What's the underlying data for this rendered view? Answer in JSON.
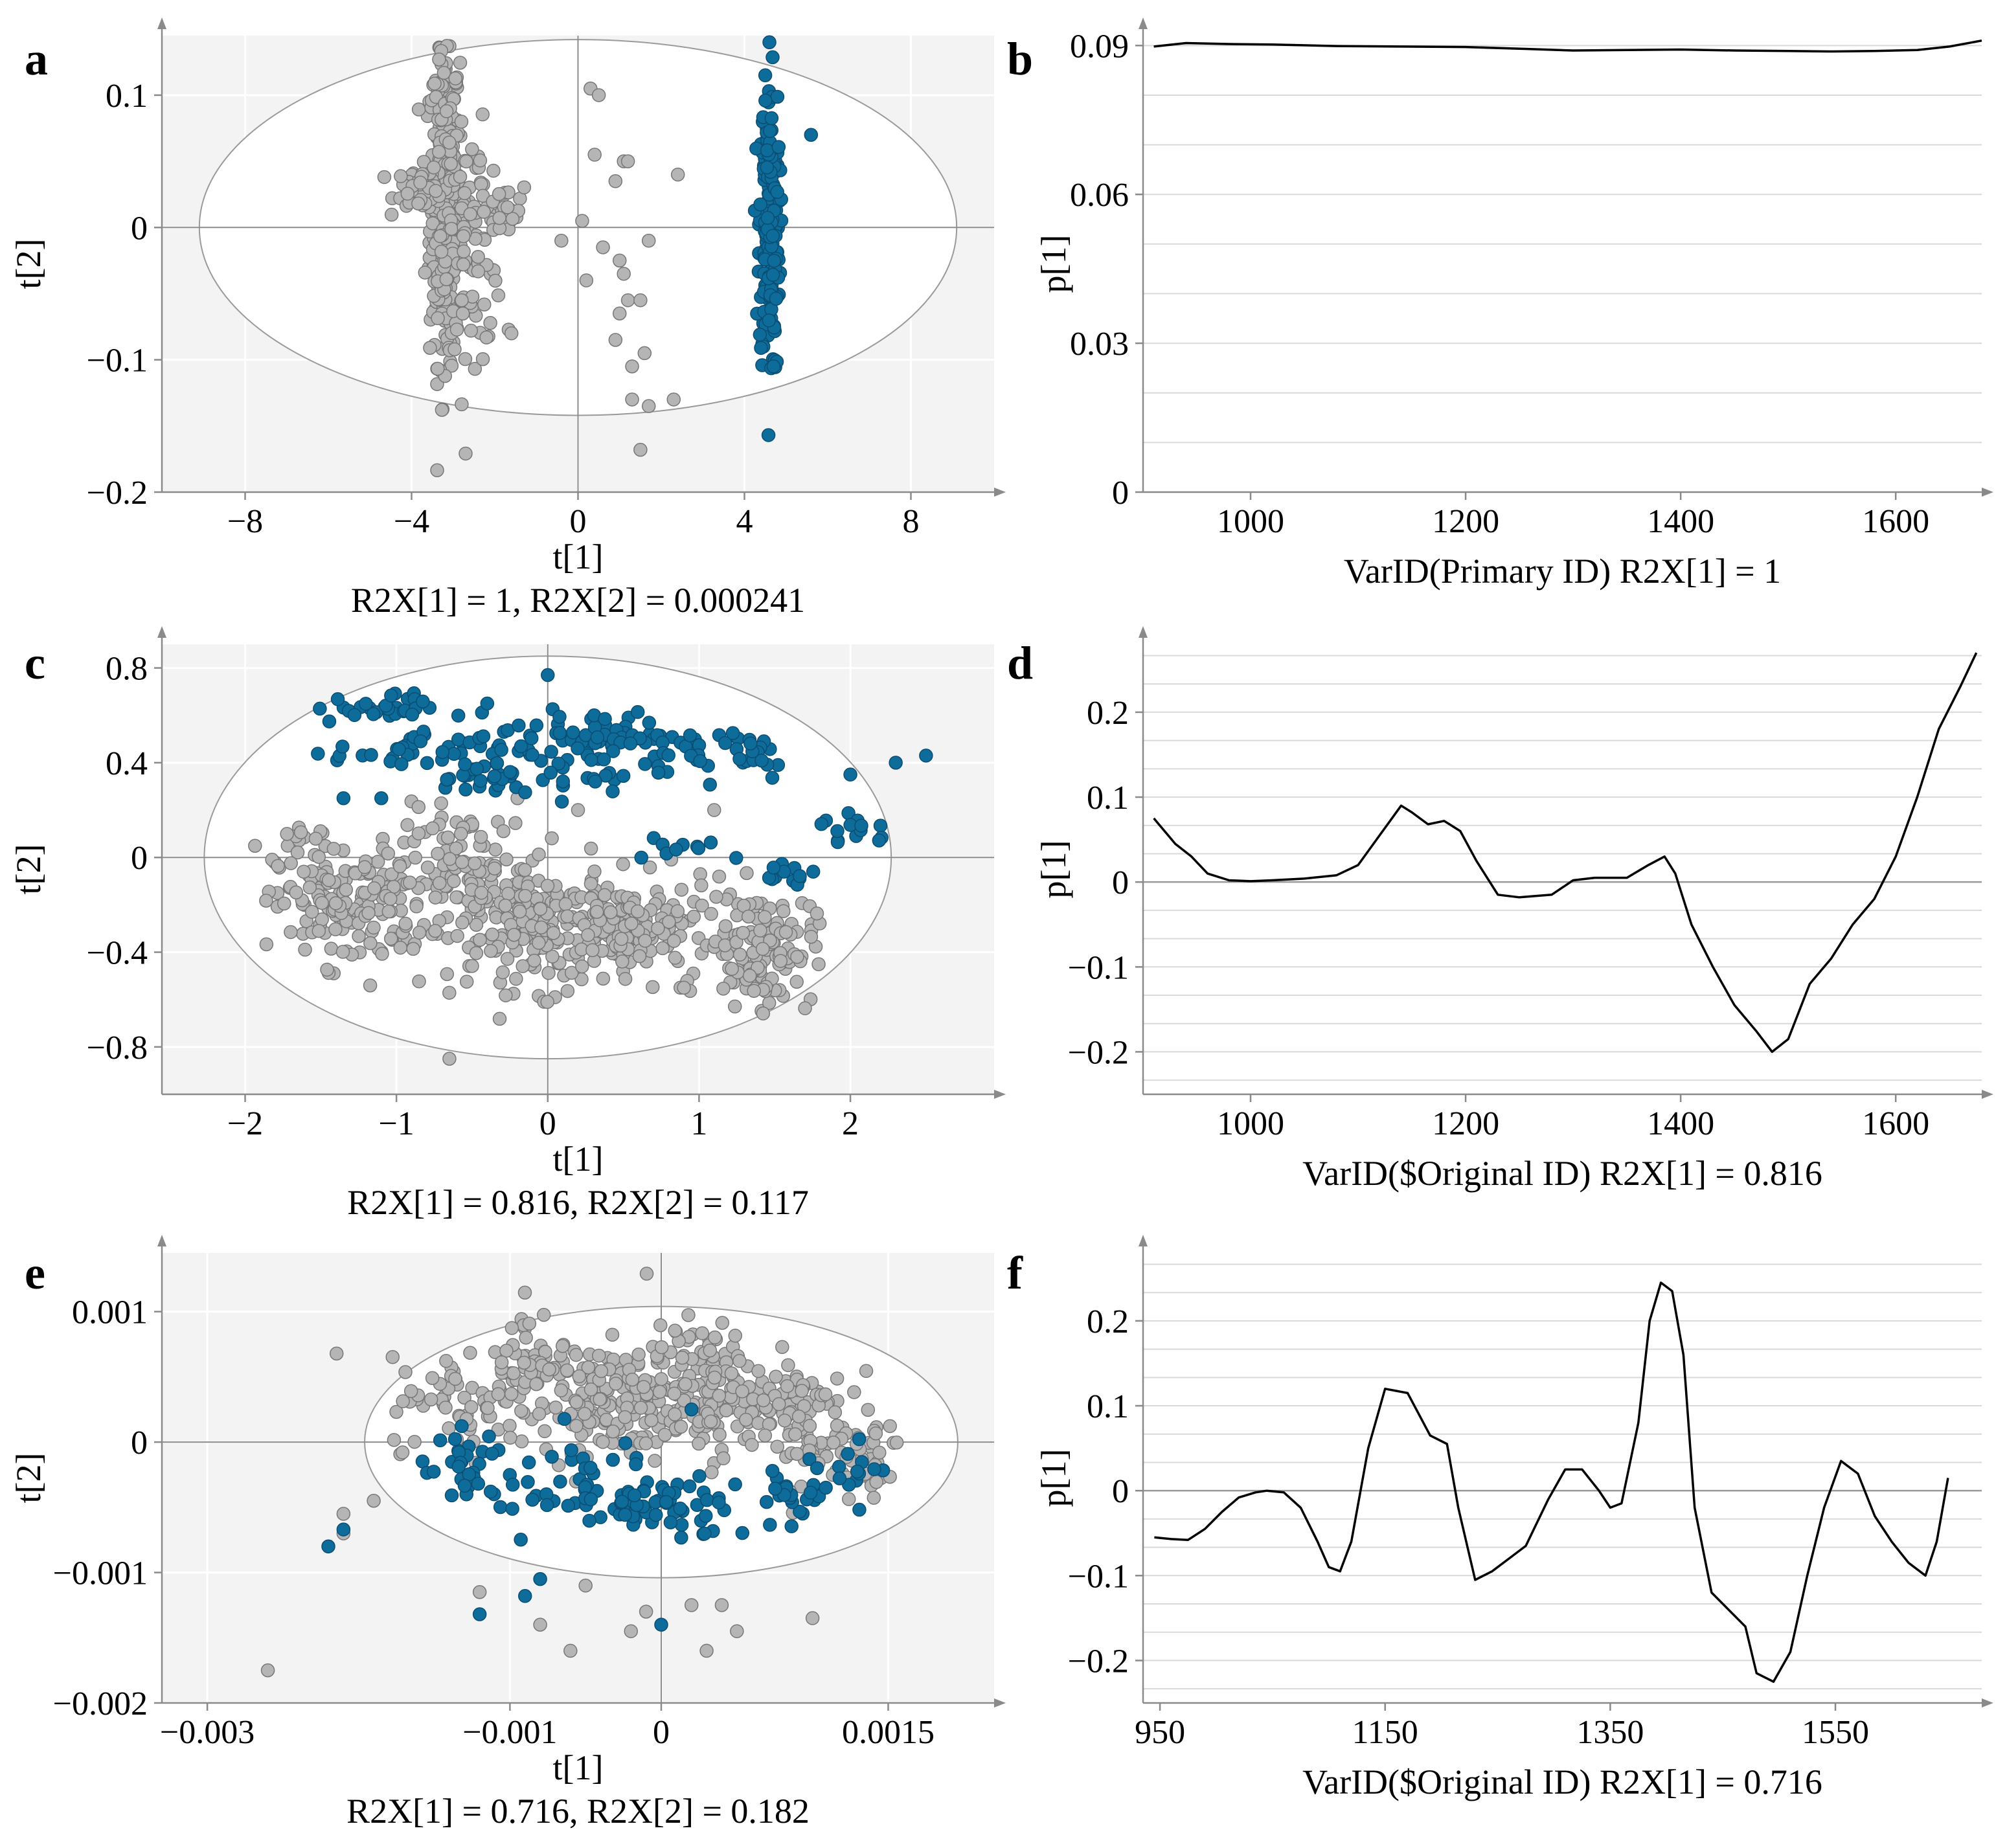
{
  "colors": {
    "gray_point": "#b5b5b5",
    "gray_point_edge": "#777777",
    "blue_point": "#0e6c9b",
    "blue_point_edge": "#0a4d73",
    "plot_bg": "#f3f3f3",
    "grid": "#d9d9d9",
    "line": "#000000"
  },
  "chart_data": [
    {
      "id": "a",
      "letter": "a",
      "type": "scatter",
      "xlabel": "t[1]",
      "ylabel": "t[2]",
      "subtitle": "R2X[1] = 1, R2X[2] = 0.000241",
      "xlim": [
        -10,
        10
      ],
      "ylim": [
        -0.2,
        0.145
      ],
      "xticks": [
        -8,
        -4,
        0,
        4,
        8
      ],
      "xtick_labels": [
        "−8",
        "−4",
        "0",
        "4",
        "8"
      ],
      "yticks": [
        -0.2,
        -0.1,
        0,
        0.1
      ],
      "ytick_labels": [
        "−0.2",
        "−0.1",
        "0",
        "0.1"
      ],
      "ellipse": {
        "rx": 9.1,
        "ry": 0.142
      },
      "series": [
        {
          "name": "gray",
          "clusters": [
            {
              "cx": -3.2,
              "cy": 0.02,
              "sx": 0.18,
              "sy": 0.06,
              "n": 420
            },
            {
              "cx": -3.8,
              "cy": 0.03,
              "sx": 0.3,
              "sy": 0.008,
              "n": 60
            },
            {
              "cx": -2.5,
              "cy": -0.01,
              "sx": 0.35,
              "sy": 0.04,
              "n": 90
            },
            {
              "cx": -1.8,
              "cy": 0.01,
              "sx": 0.25,
              "sy": 0.01,
              "n": 20
            }
          ],
          "points": [
            [
              0.3,
              0.105
            ],
            [
              0.5,
              0.1
            ],
            [
              0.4,
              0.055
            ],
            [
              1.1,
              0.05
            ],
            [
              1.2,
              0.05
            ],
            [
              2.4,
              0.04
            ],
            [
              0.9,
              0.035
            ],
            [
              -0.4,
              -0.01
            ],
            [
              0.1,
              0.005
            ],
            [
              0.6,
              -0.015
            ],
            [
              1.7,
              -0.01
            ],
            [
              1.0,
              -0.025
            ],
            [
              1.1,
              -0.035
            ],
            [
              0.2,
              -0.04
            ],
            [
              1.2,
              -0.055
            ],
            [
              1.5,
              -0.055
            ],
            [
              1.0,
              -0.065
            ],
            [
              0.9,
              -0.085
            ],
            [
              1.6,
              -0.095
            ],
            [
              1.3,
              -0.105
            ],
            [
              2.3,
              -0.13
            ],
            [
              1.3,
              -0.13
            ],
            [
              1.7,
              -0.135
            ],
            [
              1.5,
              -0.168
            ],
            [
              -1.6,
              -0.08
            ]
          ]
        },
        {
          "name": "blue",
          "clusters": [
            {
              "cx": 4.6,
              "cy": 0.0,
              "sx": 0.12,
              "sy": 0.055,
              "n": 200
            }
          ],
          "points": [
            [
              4.6,
              0.14
            ],
            [
              4.5,
              0.115
            ],
            [
              5.6,
              0.07
            ],
            [
              4.7,
              -0.105
            ]
          ]
        }
      ]
    },
    {
      "id": "b",
      "letter": "b",
      "type": "line",
      "xlabel": "VarID(Primary ID)  R2X[1] = 1",
      "ylabel": "p[1]",
      "xlim": [
        900,
        1680
      ],
      "ylim": [
        0,
        0.092
      ],
      "xticks": [
        1000,
        1200,
        1400,
        1600
      ],
      "xtick_labels": [
        "1000",
        "1200",
        "1400",
        "1600"
      ],
      "yticks": [
        0,
        0.03,
        0.06,
        0.09
      ],
      "ytick_labels": [
        "0",
        "0.03",
        "0.06",
        "0.09"
      ],
      "x": [
        910,
        940,
        980,
        1020,
        1080,
        1140,
        1200,
        1260,
        1300,
        1350,
        1400,
        1450,
        1500,
        1540,
        1580,
        1620,
        1650,
        1680
      ],
      "y": [
        0.0898,
        0.0905,
        0.0903,
        0.0902,
        0.0899,
        0.0898,
        0.0897,
        0.0893,
        0.089,
        0.0891,
        0.0892,
        0.089,
        0.0889,
        0.0888,
        0.0889,
        0.0891,
        0.0898,
        0.091
      ]
    },
    {
      "id": "c",
      "letter": "c",
      "type": "scatter",
      "xlabel": "t[1]",
      "ylabel": "t[2]",
      "subtitle": "R2X[1] = 0.816, R2X[2] = 0.117",
      "xlim": [
        -2.55,
        2.95
      ],
      "ylim": [
        -1.0,
        0.9
      ],
      "xticks": [
        -2,
        -1,
        0,
        1,
        2
      ],
      "xtick_labels": [
        "−2",
        "−1",
        "0",
        "1",
        "2"
      ],
      "yticks": [
        -0.8,
        -0.4,
        0,
        0.4,
        0.8
      ],
      "ytick_labels": [
        "−0.8",
        "−0.4",
        "0",
        "0.4",
        "0.8"
      ],
      "ellipse": {
        "rx": 2.27,
        "ry": 0.85
      },
      "series": [
        {
          "name": "gray",
          "clusters": [
            {
              "cx": -1.3,
              "cy": -0.2,
              "sx": 0.25,
              "sy": 0.13,
              "n": 160
            },
            {
              "cx": -0.55,
              "cy": -0.1,
              "sx": 0.22,
              "sy": 0.15,
              "n": 120
            },
            {
              "cx": 0.0,
              "cy": -0.3,
              "sx": 0.25,
              "sy": 0.13,
              "n": 170
            },
            {
              "cx": 0.6,
              "cy": -0.3,
              "sx": 0.25,
              "sy": 0.1,
              "n": 120
            },
            {
              "cx": 1.4,
              "cy": -0.38,
              "sx": 0.18,
              "sy": 0.12,
              "n": 130
            },
            {
              "cx": -1.7,
              "cy": 0.05,
              "sx": 0.1,
              "sy": 0.05,
              "n": 14
            }
          ],
          "points": [
            [
              -0.65,
              -0.85
            ],
            [
              0.2,
              0.2
            ],
            [
              -0.2,
              0.25
            ],
            [
              1.1,
              0.2
            ],
            [
              0.9,
              -0.55
            ]
          ]
        },
        {
          "name": "blue",
          "clusters": [
            {
              "cx": -1.15,
              "cy": 0.63,
              "sx": 0.2,
              "sy": 0.03,
              "n": 30
            },
            {
              "cx": -0.85,
              "cy": 0.45,
              "sx": 0.28,
              "sy": 0.04,
              "n": 35
            },
            {
              "cx": -0.45,
              "cy": 0.33,
              "sx": 0.2,
              "sy": 0.04,
              "n": 25
            },
            {
              "cx": 0.3,
              "cy": 0.52,
              "sx": 0.3,
              "sy": 0.05,
              "n": 60
            },
            {
              "cx": 0.2,
              "cy": 0.38,
              "sx": 0.3,
              "sy": 0.06,
              "n": 30
            },
            {
              "cx": 1.2,
              "cy": 0.45,
              "sx": 0.25,
              "sy": 0.06,
              "n": 35
            },
            {
              "cx": 0.9,
              "cy": 0.05,
              "sx": 0.25,
              "sy": 0.03,
              "n": 10
            },
            {
              "cx": 1.55,
              "cy": -0.07,
              "sx": 0.12,
              "sy": 0.04,
              "n": 12
            },
            {
              "cx": 2.05,
              "cy": 0.12,
              "sx": 0.12,
              "sy": 0.04,
              "n": 15
            }
          ],
          "points": [
            [
              0.0,
              0.77
            ],
            [
              2.5,
              0.43
            ],
            [
              2.3,
              0.4
            ],
            [
              2.0,
              0.35
            ],
            [
              -0.4,
              0.65
            ],
            [
              -1.35,
              0.25
            ],
            [
              -1.1,
              0.25
            ]
          ]
        }
      ]
    },
    {
      "id": "d",
      "letter": "d",
      "type": "line",
      "xlabel": "VarID($Original ID)  R2X[1] = 0.816",
      "ylabel": "p[1]",
      "xlim": [
        900,
        1680
      ],
      "ylim": [
        -0.25,
        0.28
      ],
      "xticks": [
        1000,
        1200,
        1400,
        1600
      ],
      "xtick_labels": [
        "1000",
        "1200",
        "1400",
        "1600"
      ],
      "yticks": [
        -0.2,
        -0.1,
        0,
        0.1,
        0.2
      ],
      "ytick_labels": [
        "−0.2",
        "−0.1",
        "0",
        "0.1",
        "0.2"
      ],
      "x": [
        910,
        920,
        930,
        945,
        960,
        980,
        1000,
        1020,
        1050,
        1080,
        1100,
        1120,
        1140,
        1150,
        1165,
        1180,
        1195,
        1210,
        1230,
        1250,
        1280,
        1300,
        1320,
        1350,
        1370,
        1385,
        1395,
        1410,
        1430,
        1450,
        1470,
        1485,
        1500,
        1520,
        1540,
        1560,
        1580,
        1600,
        1620,
        1640,
        1660,
        1675
      ],
      "y": [
        0.075,
        0.06,
        0.045,
        0.03,
        0.01,
        0.002,
        0.001,
        0.002,
        0.004,
        0.008,
        0.02,
        0.055,
        0.09,
        0.082,
        0.068,
        0.072,
        0.06,
        0.025,
        -0.015,
        -0.018,
        -0.015,
        0.002,
        0.005,
        0.005,
        0.02,
        0.03,
        0.01,
        -0.05,
        -0.1,
        -0.145,
        -0.175,
        -0.2,
        -0.185,
        -0.12,
        -0.09,
        -0.05,
        -0.02,
        0.03,
        0.1,
        0.18,
        0.23,
        0.27
      ]
    },
    {
      "id": "e",
      "letter": "e",
      "type": "scatter",
      "xlabel": "t[1]",
      "ylabel": "t[2]",
      "subtitle": "R2X[1] = 0.716, R2X[2] = 0.182",
      "xlim": [
        -0.0033,
        0.0022
      ],
      "ylim": [
        -0.002,
        0.00145
      ],
      "xticks": [
        -0.003,
        -0.001,
        0,
        0.0015
      ],
      "xtick_labels": [
        "−0.003",
        "−0.001",
        "0",
        "0.0015"
      ],
      "yticks": [
        -0.002,
        -0.001,
        0,
        0.001
      ],
      "ytick_labels": [
        "−0.002",
        "−0.001",
        "0",
        "0.001"
      ],
      "ellipse": {
        "rx": 0.00196,
        "ry": 0.00104
      },
      "series": [
        {
          "name": "gray",
          "clusters": [
            {
              "cx": -0.0013,
              "cy": 0.0003,
              "sx": 0.00025,
              "sy": 0.00018,
              "n": 60
            },
            {
              "cx": -0.0008,
              "cy": 0.0006,
              "sx": 0.0002,
              "sy": 0.00022,
              "n": 70
            },
            {
              "cx": -0.0003,
              "cy": 0.0003,
              "sx": 0.00025,
              "sy": 0.0002,
              "n": 140
            },
            {
              "cx": 0.0003,
              "cy": 0.0004,
              "sx": 0.0002,
              "sy": 0.00025,
              "n": 140
            },
            {
              "cx": 0.0009,
              "cy": 0.0002,
              "sx": 0.00015,
              "sy": 0.00025,
              "n": 90
            },
            {
              "cx": 0.0013,
              "cy": -0.0001,
              "sx": 0.00015,
              "sy": 0.00018,
              "n": 40
            }
          ],
          "points": [
            [
              -0.0026,
              -0.00175
            ],
            [
              -0.0021,
              -0.00055
            ],
            [
              -0.0021,
              -0.0007
            ],
            [
              -0.0019,
              -0.00045
            ],
            [
              -0.0012,
              -0.00115
            ],
            [
              -0.0008,
              -0.0014
            ],
            [
              -0.0006,
              -0.0016
            ],
            [
              -0.0002,
              -0.00145
            ],
            [
              0.0002,
              -0.00125
            ],
            [
              0.0004,
              -0.00125
            ],
            [
              0.0005,
              -0.00145
            ],
            [
              0.0003,
              -0.0016
            ],
            [
              0.001,
              -0.00135
            ],
            [
              -0.0001,
              -0.0013
            ],
            [
              -0.0005,
              -0.0011
            ]
          ]
        },
        {
          "name": "blue",
          "clusters": [
            {
              "cx": -0.0013,
              "cy": -0.00025,
              "sx": 0.00015,
              "sy": 0.00015,
              "n": 25
            },
            {
              "cx": -0.0008,
              "cy": -0.0003,
              "sx": 0.00025,
              "sy": 0.0002,
              "n": 30
            },
            {
              "cx": -0.0002,
              "cy": -0.0004,
              "sx": 0.0002,
              "sy": 0.00018,
              "n": 45
            },
            {
              "cx": 0.0002,
              "cy": -0.0005,
              "sx": 0.0002,
              "sy": 0.00012,
              "n": 25
            },
            {
              "cx": 0.0009,
              "cy": -0.0004,
              "sx": 0.00012,
              "sy": 0.00012,
              "n": 25
            },
            {
              "cx": 0.0013,
              "cy": -0.00015,
              "sx": 0.0001,
              "sy": 0.00012,
              "n": 12
            }
          ],
          "points": [
            [
              -0.0022,
              -0.0008
            ],
            [
              -0.0021,
              -0.00067
            ],
            [
              -0.0012,
              -0.00132
            ],
            [
              -0.0009,
              -0.00118
            ],
            [
              -0.0008,
              -0.00105
            ],
            [
              0.0,
              -0.0014
            ],
            [
              0.0002,
              0.00025
            ]
          ]
        }
      ]
    },
    {
      "id": "f",
      "letter": "f",
      "type": "line",
      "xlabel": "VarID($Original ID) R2X[1] = 0.716",
      "ylabel": "p[1]",
      "xlim": [
        935,
        1680
      ],
      "ylim": [
        -0.25,
        0.28
      ],
      "xticks": [
        950,
        1150,
        1350,
        1550
      ],
      "xtick_labels": [
        "950",
        "1150",
        "1350",
        "1550"
      ],
      "yticks": [
        -0.2,
        -0.1,
        0,
        0.1,
        0.2
      ],
      "ytick_labels": [
        "−0.2",
        "−0.1",
        "0",
        "0.1",
        "0.2"
      ],
      "x": [
        945,
        960,
        975,
        990,
        1005,
        1020,
        1035,
        1045,
        1060,
        1075,
        1090,
        1100,
        1110,
        1120,
        1135,
        1150,
        1170,
        1190,
        1205,
        1215,
        1230,
        1245,
        1260,
        1275,
        1295,
        1310,
        1325,
        1340,
        1350,
        1360,
        1375,
        1385,
        1395,
        1405,
        1415,
        1425,
        1440,
        1455,
        1470,
        1480,
        1495,
        1510,
        1525,
        1540,
        1555,
        1570,
        1585,
        1600,
        1615,
        1630,
        1640,
        1650
      ],
      "y": [
        -0.055,
        -0.057,
        -0.058,
        -0.045,
        -0.025,
        -0.008,
        -0.002,
        0.0,
        -0.002,
        -0.02,
        -0.06,
        -0.09,
        -0.095,
        -0.06,
        0.05,
        0.12,
        0.115,
        0.065,
        0.055,
        -0.02,
        -0.105,
        -0.095,
        -0.08,
        -0.065,
        -0.01,
        0.025,
        0.025,
        0.0,
        -0.02,
        -0.015,
        0.08,
        0.2,
        0.245,
        0.235,
        0.16,
        -0.02,
        -0.12,
        -0.14,
        -0.16,
        -0.215,
        -0.225,
        -0.19,
        -0.1,
        -0.02,
        0.035,
        0.02,
        -0.03,
        -0.06,
        -0.085,
        -0.1,
        -0.06,
        0.015
      ]
    }
  ]
}
